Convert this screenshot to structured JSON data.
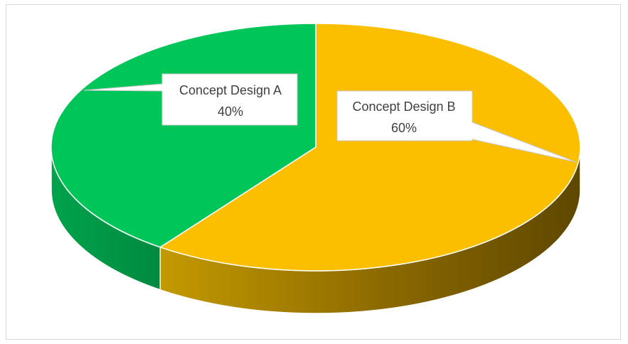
{
  "chart_data": {
    "type": "pie",
    "style": "3d",
    "slices": [
      {
        "label": "Concept Design A",
        "value": 40,
        "value_label": "40%",
        "color": "#00c65a"
      },
      {
        "label": "Concept Design B",
        "value": 60,
        "value_label": "60%",
        "color": "#fbbf00"
      }
    ],
    "legend": "none",
    "data_labels": "callout"
  }
}
